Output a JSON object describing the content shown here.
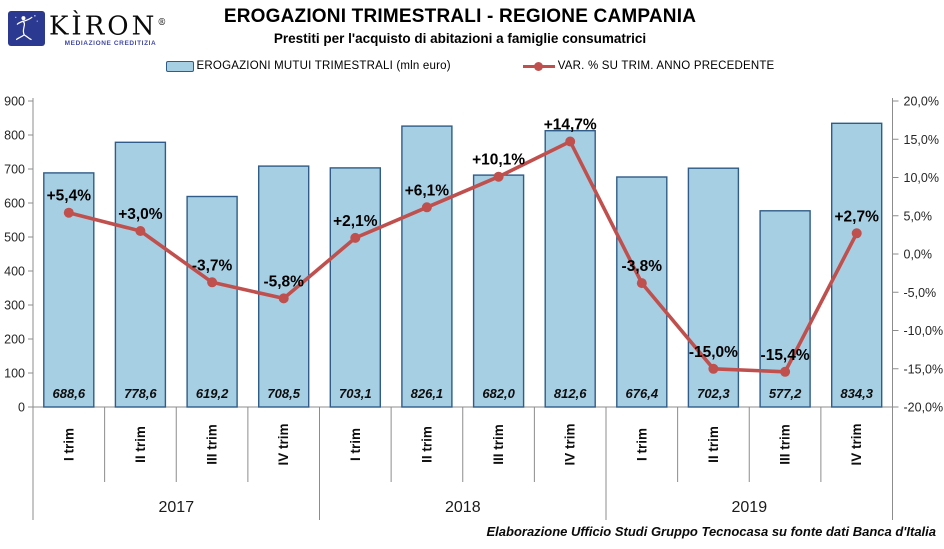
{
  "logo": {
    "brand": "KÌRON",
    "registered": "®",
    "tagline": "MEDIAZIONE CREDITIZIA"
  },
  "header": {
    "title": "EROGAZIONI TRIMESTRALI - REGIONE CAMPANIA",
    "subtitle": "Prestiti per l'acquisto di abitazioni a famiglie consumatrici"
  },
  "legend": {
    "bars": "EROGAZIONI MUTUI TRIMESTRALI (mln euro)",
    "line": "VAR. % SU TRIM. ANNO PRECEDENTE"
  },
  "footer": {
    "source": "Elaborazione Ufficio Studi Gruppo Tecnocasa su fonte dati Banca d'Italia"
  },
  "colors": {
    "bar_fill": "#A7CFE3",
    "bar_border": "#2F5C88",
    "line": "#C0504D",
    "axis": "#8C8C8C",
    "tick_text": "#262626",
    "logo_blue": "#2B3990"
  },
  "chart_data": {
    "type": "bar",
    "combo": "bar+line",
    "title": "EROGAZIONI TRIMESTRALI - REGIONE CAMPANIA",
    "subtitle": "Prestiti per l'acquisto di abitazioni a famiglie consumatrici",
    "years": [
      "2017",
      "2018",
      "2019"
    ],
    "quarters": [
      "I trim",
      "II trim",
      "III trim",
      "IV trim"
    ],
    "categories": [
      "I trim 2017",
      "II trim 2017",
      "III trim 2017",
      "IV trim 2017",
      "I trim 2018",
      "II trim 2018",
      "III trim 2018",
      "IV trim 2018",
      "I trim 2019",
      "II trim 2019",
      "III trim 2019",
      "IV trim 2019"
    ],
    "series": [
      {
        "name": "EROGAZIONI MUTUI TRIMESTRALI (mln euro)",
        "type": "bar",
        "axis": "left",
        "values": [
          688.6,
          778.6,
          619.2,
          708.5,
          703.1,
          826.1,
          682.0,
          812.6,
          676.4,
          702.3,
          577.2,
          834.3
        ],
        "labels": [
          "688,6",
          "778,6",
          "619,2",
          "708,5",
          "703,1",
          "826,1",
          "682,0",
          "812,6",
          "676,4",
          "702,3",
          "577,2",
          "834,3"
        ]
      },
      {
        "name": "VAR. % SU TRIM. ANNO PRECEDENTE",
        "type": "line",
        "axis": "right",
        "values": [
          5.4,
          3.0,
          -3.7,
          -5.8,
          2.1,
          6.1,
          10.1,
          14.7,
          -3.8,
          -15.0,
          -15.4,
          2.7
        ],
        "labels": [
          "+5,4%",
          "+3,0%",
          "-3,7%",
          "-5,8%",
          "+2,1%",
          "+6,1%",
          "+10,1%",
          "+14,7%",
          "-3,8%",
          "-15,0%",
          "-15,4%",
          "+2,7%"
        ]
      }
    ],
    "left_axis": {
      "min": 0,
      "max": 900,
      "step": 100,
      "ticks": [
        "900",
        "800",
        "700",
        "600",
        "500",
        "400",
        "300",
        "200",
        "100",
        "0"
      ]
    },
    "right_axis": {
      "min": -20,
      "max": 20,
      "step": 5,
      "ticks": [
        "20,0%",
        "15,0%",
        "10,0%",
        "5,0%",
        "0,0%",
        "-5,0%",
        "-10,0%",
        "-15,0%",
        "-20,0%"
      ]
    },
    "grid": false,
    "legend_position": "top"
  }
}
